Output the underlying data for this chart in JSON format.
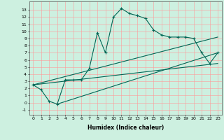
{
  "xlabel": "Humidex (Indice chaleur)",
  "bg_color": "#cdf0e0",
  "line_color": "#006655",
  "grid_color": "#ff9999",
  "xlim": [
    -0.5,
    23.5
  ],
  "ylim": [
    -1.7,
    14.2
  ],
  "xticks": [
    0,
    1,
    2,
    3,
    4,
    5,
    6,
    7,
    8,
    9,
    10,
    11,
    12,
    13,
    14,
    15,
    16,
    17,
    18,
    19,
    20,
    21,
    22,
    23
  ],
  "yticks": [
    -1,
    0,
    1,
    2,
    3,
    4,
    5,
    6,
    7,
    8,
    9,
    10,
    11,
    12,
    13
  ],
  "series1_x": [
    0,
    1,
    2,
    3,
    4,
    5,
    6,
    7,
    8,
    9,
    10,
    11,
    12,
    13,
    14,
    15,
    16,
    17,
    18,
    19,
    20,
    21,
    22,
    23
  ],
  "series1_y": [
    2.5,
    1.8,
    0.2,
    -0.2,
    3.2,
    3.2,
    3.2,
    4.8,
    9.8,
    7.0,
    12.0,
    13.2,
    12.5,
    12.2,
    11.8,
    10.2,
    9.5,
    9.2,
    9.2,
    9.2,
    9.0,
    7.0,
    5.5,
    7.0
  ],
  "series2_x": [
    0,
    23
  ],
  "series2_y": [
    2.5,
    9.2
  ],
  "series3_x": [
    3,
    23
  ],
  "series3_y": [
    -0.2,
    7.0
  ],
  "series4_x": [
    0,
    23
  ],
  "series4_y": [
    2.5,
    5.5
  ],
  "xlabel_fontsize": 5.5,
  "tick_fontsize": 4.5,
  "linewidth": 0.8,
  "marker_size": 2.5
}
